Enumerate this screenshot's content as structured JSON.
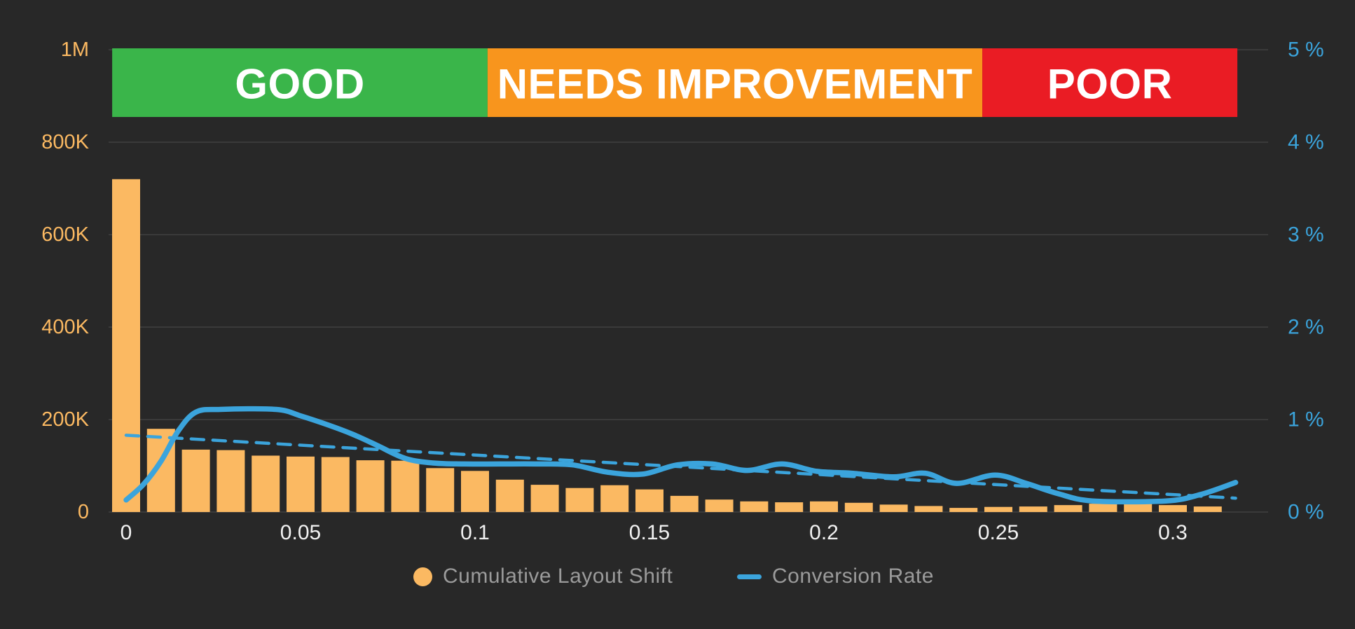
{
  "colors": {
    "background": "#282828",
    "grid": "#3a3a3a",
    "bar": "#fbb962",
    "line": "#3ba4dc",
    "trend": "#3ba4dc",
    "band_good": "#3ab54a",
    "band_needs_improvement": "#f8951d",
    "band_poor": "#ea1c24",
    "band_text": "#ffffff",
    "left_axis_text": "#fbb962",
    "right_axis_text": "#3ba4dc",
    "x_axis_text": "#f2f2f2",
    "legend_text": "#9b9b9b"
  },
  "bands": [
    {
      "id": "good",
      "label": "GOOD",
      "from": -0.004,
      "to": 0.1036
    },
    {
      "id": "needs-improvement",
      "label": "NEEDS IMPROVEMENT",
      "from": 0.1036,
      "to": 0.2454
    },
    {
      "id": "poor",
      "label": "POOR",
      "from": 0.2454,
      "to": 0.3185
    }
  ],
  "axes": {
    "left": {
      "labels": [
        "1M",
        "800K",
        "600K",
        "400K",
        "200K",
        "0"
      ],
      "values": [
        1000000,
        800000,
        600000,
        400000,
        200000,
        0
      ]
    },
    "right": {
      "labels": [
        "5 %",
        "4 %",
        "3 %",
        "2 %",
        "1 %",
        "0 %"
      ],
      "values": [
        5,
        4,
        3,
        2,
        1,
        0
      ]
    },
    "x": {
      "labels": [
        "0",
        "0.05",
        "0.1",
        "0.15",
        "0.2",
        "0.25",
        "0.3"
      ],
      "values": [
        0,
        0.05,
        0.1,
        0.15,
        0.2,
        0.25,
        0.3
      ]
    }
  },
  "legend": {
    "items": [
      {
        "label": "Cumulative Layout Shift",
        "swatch": "circle"
      },
      {
        "label": "Conversion Rate",
        "swatch": "line"
      }
    ]
  },
  "chart_data": {
    "type": "bar+line",
    "title": "",
    "xlim": [
      -0.004,
      0.3275
    ],
    "ylim_left": [
      0,
      1000000
    ],
    "ylim_right": [
      0,
      5
    ],
    "x_tick_labels": [
      "0",
      "0.05",
      "0.1",
      "0.15",
      "0.2",
      "0.25",
      "0.3"
    ],
    "left_tick_labels": [
      "1M",
      "800K",
      "600K",
      "400K",
      "200K",
      "0"
    ],
    "right_tick_labels": [
      "5 %",
      "4 %",
      "3 %",
      "2 %",
      "1 %",
      "0 %"
    ],
    "grid": "horizontal",
    "legend_position": "bottom",
    "threshold_bands": [
      {
        "label": "GOOD",
        "x_from": -0.004,
        "x_to": 0.1036
      },
      {
        "label": "NEEDS IMPROVEMENT",
        "x_from": 0.1036,
        "x_to": 0.2454
      },
      {
        "label": "POOR",
        "x_from": 0.2454,
        "x_to": 0.3185
      }
    ],
    "series": [
      {
        "name": "Cumulative Layout Shift",
        "type": "bar",
        "yaxis": "left",
        "x": [
          0.0,
          0.01,
          0.02,
          0.03,
          0.04,
          0.05,
          0.06,
          0.07,
          0.08,
          0.09,
          0.1,
          0.11,
          0.12,
          0.13,
          0.14,
          0.15,
          0.16,
          0.17,
          0.18,
          0.19,
          0.2,
          0.21,
          0.22,
          0.23,
          0.24,
          0.25,
          0.26,
          0.27,
          0.28,
          0.29,
          0.3,
          0.31
        ],
        "values": [
          720000,
          180000,
          135000,
          134000,
          122000,
          120000,
          119000,
          112000,
          111000,
          95000,
          89000,
          70000,
          59000,
          52000,
          58000,
          49000,
          35000,
          27000,
          23000,
          21000,
          23000,
          20000,
          16000,
          13000,
          9000,
          11000,
          12000,
          15000,
          18000,
          20000,
          15000,
          12000
        ]
      },
      {
        "name": "Conversion Rate",
        "type": "line",
        "yaxis": "right",
        "points": [
          [
            0.0,
            0.13
          ],
          [
            0.005,
            0.3
          ],
          [
            0.01,
            0.55
          ],
          [
            0.015,
            0.88
          ],
          [
            0.02,
            1.08
          ],
          [
            0.027,
            1.11
          ],
          [
            0.043,
            1.11
          ],
          [
            0.05,
            1.04
          ],
          [
            0.058,
            0.94
          ],
          [
            0.065,
            0.84
          ],
          [
            0.072,
            0.72
          ],
          [
            0.08,
            0.58
          ],
          [
            0.088,
            0.53
          ],
          [
            0.097,
            0.52
          ],
          [
            0.107,
            0.52
          ],
          [
            0.118,
            0.52
          ],
          [
            0.128,
            0.51
          ],
          [
            0.138,
            0.43
          ],
          [
            0.148,
            0.41
          ],
          [
            0.158,
            0.51
          ],
          [
            0.168,
            0.52
          ],
          [
            0.178,
            0.45
          ],
          [
            0.188,
            0.52
          ],
          [
            0.198,
            0.44
          ],
          [
            0.208,
            0.42
          ],
          [
            0.22,
            0.38
          ],
          [
            0.229,
            0.42
          ],
          [
            0.238,
            0.31
          ],
          [
            0.249,
            0.4
          ],
          [
            0.258,
            0.31
          ],
          [
            0.267,
            0.2
          ],
          [
            0.277,
            0.12
          ],
          [
            0.298,
            0.12
          ],
          [
            0.308,
            0.19
          ],
          [
            0.318,
            0.32
          ]
        ]
      },
      {
        "name": "Conversion Rate trend",
        "type": "line-dashed",
        "yaxis": "right",
        "points": [
          [
            0.0,
            0.83
          ],
          [
            0.318,
            0.15
          ]
        ]
      }
    ]
  }
}
